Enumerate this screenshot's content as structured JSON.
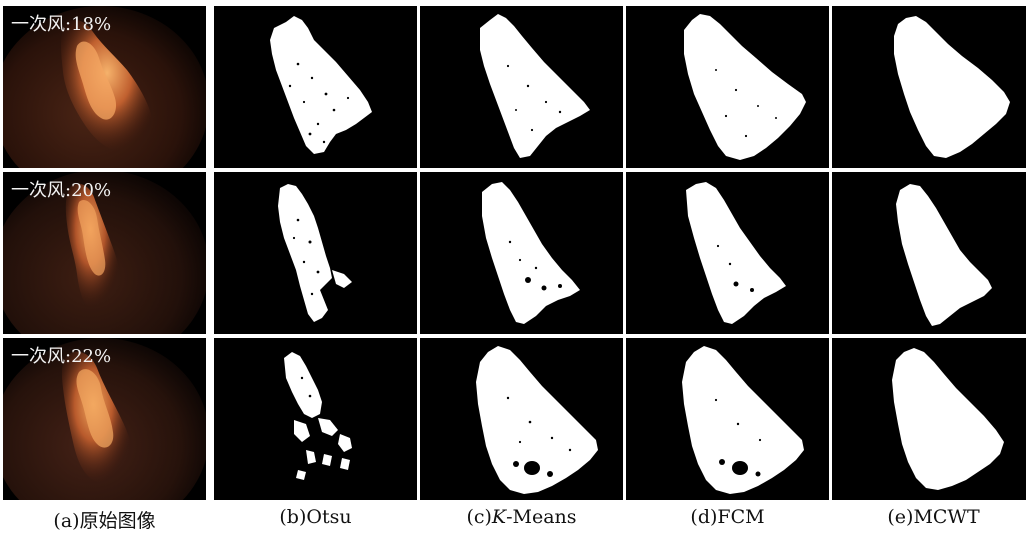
{
  "rows": [
    {
      "label": "一次风:18%"
    },
    {
      "label": "一次风:20%"
    },
    {
      "label": "一次风:22%"
    }
  ],
  "captions": [
    {
      "prefix": "(a)",
      "text": "原始图像"
    },
    {
      "prefix": "(b)",
      "text": "Otsu"
    },
    {
      "prefix": "(c)",
      "text_italic": "K",
      "text": "-Means"
    },
    {
      "prefix": "(d)",
      "text": "FCM"
    },
    {
      "prefix": "(e)",
      "text": "MCWT"
    }
  ],
  "colors": {
    "background": "#000000",
    "mask": "#ffffff",
    "flame_core": "#f3a35a",
    "flame_mid": "#b5532a",
    "lens_edge": "#3a1a10"
  }
}
